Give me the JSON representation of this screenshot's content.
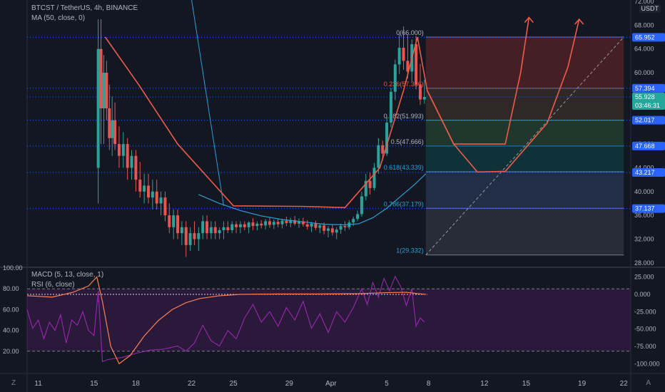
{
  "header": {
    "symbol_line": "BTCST / TetherUS, 4h, BINANCE",
    "ma_line": "MA (50, close, 0)",
    "currency": "USDT"
  },
  "indicators": {
    "macd_line": "MACD (5, 13, close, 1)",
    "rsi_line": "RSI (6, close)"
  },
  "corners": {
    "left": "Z",
    "right": "A"
  },
  "colors": {
    "background": "#131722",
    "up": "#26a69a",
    "down": "#ef5350",
    "drawing": "#f05a47",
    "ma": "#2a9fd6",
    "rsi": "#9c27b0",
    "macd_signal": "#ff7f50",
    "tag_blue": "#2962ff",
    "tag_teal": "#26a69a"
  },
  "price_tags": [
    {
      "label": "65.952",
      "color": "#2962ff",
      "value": 65.952
    },
    {
      "label": "57.394",
      "color": "#2962ff",
      "value": 57.394
    },
    {
      "label": "55.928",
      "color": "#26a69a",
      "value": 55.928,
      "sub": "03:46:31"
    },
    {
      "label": "52.017",
      "color": "#2962ff",
      "value": 52.017
    },
    {
      "label": "47.668",
      "color": "#2962ff",
      "value": 47.668
    },
    {
      "label": "43.217",
      "color": "#2962ff",
      "value": 43.217
    },
    {
      "label": "37.137",
      "color": "#2962ff",
      "value": 37.137
    }
  ],
  "fib_labels": [
    {
      "label": "0(66.000)",
      "value": 66.0
    },
    {
      "label": "0.236(57.386)",
      "value": 57.386
    },
    {
      "label": "0.382(51.993)",
      "value": 51.993
    },
    {
      "label": "0.5(47.666)",
      "value": 47.666
    },
    {
      "label": "0.618(43.339)",
      "value": 43.339
    },
    {
      "label": "0.786(37.179)",
      "value": 37.179
    },
    {
      "label": "1(29.332)",
      "value": 29.332
    }
  ],
  "chart_data": {
    "type": "candlestick",
    "price_axis": {
      "ticks": [
        "72.000",
        "68.000",
        "64.000",
        "60.000",
        "56.000",
        "52.000",
        "48.000",
        "44.000",
        "40.000",
        "36.000",
        "32.000",
        "28.000"
      ],
      "values": [
        72,
        68,
        64,
        60,
        56,
        52,
        48,
        44,
        40,
        36,
        32,
        28
      ],
      "range": [
        27.5,
        72
      ]
    },
    "time_axis": {
      "labels": [
        "11",
        "15",
        "18",
        "22",
        "25",
        "29",
        "Apr",
        "5",
        "8",
        "12",
        "15",
        "19",
        "22"
      ],
      "positions_day": [
        11,
        15,
        18,
        22,
        25,
        29,
        32,
        36,
        39,
        43,
        46,
        50,
        53
      ]
    },
    "lower_left_axis": {
      "ticks": [
        "100.00",
        "80.00",
        "60.00",
        "40.00",
        "20.00"
      ],
      "values": [
        100,
        80,
        60,
        40,
        20
      ],
      "range": [
        0,
        100
      ]
    },
    "lower_right_axis": {
      "ticks": [
        "25.000",
        "0.000",
        "-25.000",
        "-50.000",
        "-75.000",
        "-100.000"
      ],
      "values": [
        25,
        0,
        -25,
        -50,
        -75,
        -100
      ],
      "range": [
        -112,
        38
      ]
    },
    "day_range": [
      10.2,
      53.5
    ],
    "candles": [
      {
        "d": 15.3,
        "o": 44,
        "h": 69,
        "l": 38,
        "c": 64
      },
      {
        "d": 15.5,
        "o": 64,
        "h": 69,
        "l": 48,
        "c": 54
      },
      {
        "d": 15.7,
        "o": 54,
        "h": 63,
        "l": 48,
        "c": 60
      },
      {
        "d": 15.9,
        "o": 60,
        "h": 62,
        "l": 52,
        "c": 54
      },
      {
        "d": 16.1,
        "o": 54,
        "h": 58,
        "l": 47,
        "c": 49
      },
      {
        "d": 16.3,
        "o": 49,
        "h": 56,
        "l": 46,
        "c": 52
      },
      {
        "d": 16.5,
        "o": 52,
        "h": 55,
        "l": 47,
        "c": 48
      },
      {
        "d": 16.8,
        "o": 48,
        "h": 51,
        "l": 44,
        "c": 46
      },
      {
        "d": 17.1,
        "o": 46,
        "h": 50,
        "l": 44,
        "c": 48
      },
      {
        "d": 17.4,
        "o": 48,
        "h": 49,
        "l": 42,
        "c": 44
      },
      {
        "d": 17.7,
        "o": 44,
        "h": 47,
        "l": 42,
        "c": 46
      },
      {
        "d": 18.0,
        "o": 46,
        "h": 47,
        "l": 40,
        "c": 42
      },
      {
        "d": 18.3,
        "o": 42,
        "h": 45,
        "l": 39,
        "c": 40
      },
      {
        "d": 18.6,
        "o": 40,
        "h": 43,
        "l": 38,
        "c": 41
      },
      {
        "d": 18.9,
        "o": 41,
        "h": 43,
        "l": 38,
        "c": 39
      },
      {
        "d": 19.2,
        "o": 39,
        "h": 42,
        "l": 37,
        "c": 40
      },
      {
        "d": 19.5,
        "o": 40,
        "h": 42,
        "l": 37,
        "c": 38
      },
      {
        "d": 19.8,
        "o": 38,
        "h": 40,
        "l": 36,
        "c": 39
      },
      {
        "d": 20.1,
        "o": 39,
        "h": 40,
        "l": 35,
        "c": 36
      },
      {
        "d": 20.4,
        "o": 36,
        "h": 38,
        "l": 33,
        "c": 34
      },
      {
        "d": 20.7,
        "o": 34,
        "h": 37,
        "l": 32,
        "c": 36
      },
      {
        "d": 21.0,
        "o": 36,
        "h": 37,
        "l": 32,
        "c": 33
      },
      {
        "d": 21.3,
        "o": 33,
        "h": 35,
        "l": 31,
        "c": 34
      },
      {
        "d": 21.6,
        "o": 34,
        "h": 35,
        "l": 29,
        "c": 31
      },
      {
        "d": 21.9,
        "o": 31,
        "h": 34,
        "l": 30,
        "c": 33
      },
      {
        "d": 22.2,
        "o": 33,
        "h": 35,
        "l": 31,
        "c": 32
      },
      {
        "d": 22.5,
        "o": 32,
        "h": 34,
        "l": 30,
        "c": 33
      },
      {
        "d": 22.8,
        "o": 33,
        "h": 36,
        "l": 32,
        "c": 35
      },
      {
        "d": 23.1,
        "o": 35,
        "h": 36,
        "l": 32,
        "c": 33
      },
      {
        "d": 23.4,
        "o": 33,
        "h": 35,
        "l": 32,
        "c": 34
      },
      {
        "d": 23.7,
        "o": 34,
        "h": 35,
        "l": 32,
        "c": 33
      },
      {
        "d": 24.0,
        "o": 33,
        "h": 34,
        "l": 32,
        "c": 33.5
      },
      {
        "d": 24.3,
        "o": 33.5,
        "h": 35,
        "l": 32,
        "c": 34
      },
      {
        "d": 24.6,
        "o": 34,
        "h": 35,
        "l": 33,
        "c": 33.5
      },
      {
        "d": 24.9,
        "o": 33.5,
        "h": 35,
        "l": 33,
        "c": 34.5
      },
      {
        "d": 25.2,
        "o": 34.5,
        "h": 35,
        "l": 33,
        "c": 34
      },
      {
        "d": 25.5,
        "o": 34,
        "h": 35,
        "l": 33,
        "c": 34.5
      },
      {
        "d": 25.8,
        "o": 34.5,
        "h": 35,
        "l": 33.5,
        "c": 34
      },
      {
        "d": 26.1,
        "o": 34,
        "h": 35,
        "l": 33,
        "c": 34.8
      },
      {
        "d": 26.4,
        "o": 34.8,
        "h": 35.5,
        "l": 33.5,
        "c": 34.2
      },
      {
        "d": 26.7,
        "o": 34.2,
        "h": 35,
        "l": 33.5,
        "c": 34.6
      },
      {
        "d": 27.0,
        "o": 34.6,
        "h": 35.2,
        "l": 33.8,
        "c": 34.3
      },
      {
        "d": 27.3,
        "o": 34.3,
        "h": 35.4,
        "l": 33.6,
        "c": 35.0
      },
      {
        "d": 27.6,
        "o": 35.0,
        "h": 35.6,
        "l": 33.9,
        "c": 34.4
      },
      {
        "d": 27.9,
        "o": 34.4,
        "h": 35.3,
        "l": 33.7,
        "c": 34.9
      },
      {
        "d": 28.2,
        "o": 34.9,
        "h": 35.5,
        "l": 34.0,
        "c": 34.5
      },
      {
        "d": 28.5,
        "o": 34.5,
        "h": 35.4,
        "l": 33.8,
        "c": 35.1
      },
      {
        "d": 28.8,
        "o": 35.1,
        "h": 35.8,
        "l": 34.2,
        "c": 34.7
      },
      {
        "d": 29.1,
        "o": 34.7,
        "h": 35.6,
        "l": 34.0,
        "c": 35.2
      },
      {
        "d": 29.4,
        "o": 35.2,
        "h": 35.9,
        "l": 34.3,
        "c": 34.6
      },
      {
        "d": 29.7,
        "o": 34.6,
        "h": 35.5,
        "l": 33.9,
        "c": 35.0
      },
      {
        "d": 30.0,
        "o": 35.0,
        "h": 35.6,
        "l": 34.1,
        "c": 34.5
      },
      {
        "d": 30.3,
        "o": 34.5,
        "h": 35.2,
        "l": 33.6,
        "c": 34.1
      },
      {
        "d": 30.6,
        "o": 34.1,
        "h": 34.9,
        "l": 33.2,
        "c": 34.6
      },
      {
        "d": 30.9,
        "o": 34.6,
        "h": 35.1,
        "l": 33.5,
        "c": 33.9
      },
      {
        "d": 31.2,
        "o": 33.9,
        "h": 34.6,
        "l": 33.0,
        "c": 34.3
      },
      {
        "d": 31.5,
        "o": 34.3,
        "h": 34.8,
        "l": 32.8,
        "c": 33.4
      },
      {
        "d": 31.8,
        "o": 33.4,
        "h": 34.2,
        "l": 32.3,
        "c": 33.8
      },
      {
        "d": 32.1,
        "o": 33.8,
        "h": 34.5,
        "l": 32.6,
        "c": 33.1
      },
      {
        "d": 32.4,
        "o": 33.1,
        "h": 34.0,
        "l": 32.0,
        "c": 33.6
      },
      {
        "d": 32.7,
        "o": 33.6,
        "h": 34.6,
        "l": 32.9,
        "c": 34.2
      },
      {
        "d": 33.0,
        "o": 34.2,
        "h": 35.0,
        "l": 33.4,
        "c": 34.0
      },
      {
        "d": 33.3,
        "o": 34.0,
        "h": 35.2,
        "l": 33.6,
        "c": 34.8
      },
      {
        "d": 33.6,
        "o": 34.8,
        "h": 35.8,
        "l": 34.2,
        "c": 35.4
      },
      {
        "d": 33.9,
        "o": 35.4,
        "h": 36.8,
        "l": 35.0,
        "c": 36.2
      },
      {
        "d": 34.2,
        "o": 36.2,
        "h": 40.0,
        "l": 35.8,
        "c": 39.2
      },
      {
        "d": 34.5,
        "o": 39.2,
        "h": 43.0,
        "l": 38.5,
        "c": 41.8
      },
      {
        "d": 34.8,
        "o": 41.8,
        "h": 43.2,
        "l": 39.5,
        "c": 40.6
      },
      {
        "d": 35.1,
        "o": 40.6,
        "h": 44.8,
        "l": 40.2,
        "c": 44.0
      },
      {
        "d": 35.4,
        "o": 44.0,
        "h": 49.0,
        "l": 43.0,
        "c": 47.8
      },
      {
        "d": 35.7,
        "o": 47.8,
        "h": 48.6,
        "l": 45.2,
        "c": 46.4
      },
      {
        "d": 36.0,
        "o": 46.4,
        "h": 52.5,
        "l": 46.0,
        "c": 51.6
      },
      {
        "d": 36.3,
        "o": 51.6,
        "h": 57.5,
        "l": 50.8,
        "c": 56.8
      },
      {
        "d": 36.6,
        "o": 56.8,
        "h": 62.2,
        "l": 55.4,
        "c": 61.4
      },
      {
        "d": 36.9,
        "o": 61.4,
        "h": 66.5,
        "l": 59.8,
        "c": 64.2
      },
      {
        "d": 37.2,
        "o": 64.2,
        "h": 67.8,
        "l": 60.5,
        "c": 62.0
      },
      {
        "d": 37.5,
        "o": 62.0,
        "h": 66.4,
        "l": 59.0,
        "c": 60.2
      },
      {
        "d": 37.8,
        "o": 60.2,
        "h": 65.6,
        "l": 58.5,
        "c": 64.8
      },
      {
        "d": 38.1,
        "o": 64.8,
        "h": 66.2,
        "l": 57.2,
        "c": 58.0
      },
      {
        "d": 38.4,
        "o": 58.0,
        "h": 61.5,
        "l": 54.6,
        "c": 55.5
      },
      {
        "d": 38.7,
        "o": 55.5,
        "h": 58.8,
        "l": 54.8,
        "c": 55.928
      }
    ],
    "ma50": [
      {
        "d": 22.5,
        "v": 39.5
      },
      {
        "d": 24.0,
        "v": 38.0
      },
      {
        "d": 25.5,
        "v": 36.8
      },
      {
        "d": 27.0,
        "v": 35.9
      },
      {
        "d": 28.5,
        "v": 35.3
      },
      {
        "d": 30.0,
        "v": 34.9
      },
      {
        "d": 31.5,
        "v": 34.5
      },
      {
        "d": 33.0,
        "v": 34.4
      },
      {
        "d": 34.0,
        "v": 34.6
      },
      {
        "d": 35.0,
        "v": 35.6
      },
      {
        "d": 36.0,
        "v": 37.2
      },
      {
        "d": 37.0,
        "v": 39.2
      },
      {
        "d": 38.0,
        "v": 41.2
      },
      {
        "d": 38.8,
        "v": 43.0
      }
    ],
    "rsi": [
      {
        "d": 10.2,
        "v": 60
      },
      {
        "d": 10.6,
        "v": 42
      },
      {
        "d": 11.0,
        "v": 50
      },
      {
        "d": 11.4,
        "v": 32
      },
      {
        "d": 11.8,
        "v": 48
      },
      {
        "d": 12.2,
        "v": 40
      },
      {
        "d": 12.6,
        "v": 55
      },
      {
        "d": 13.0,
        "v": 28
      },
      {
        "d": 13.4,
        "v": 50
      },
      {
        "d": 13.8,
        "v": 45
      },
      {
        "d": 14.2,
        "v": 58
      },
      {
        "d": 14.6,
        "v": 40
      },
      {
        "d": 15.0,
        "v": 35
      },
      {
        "d": 15.3,
        "v": 78
      },
      {
        "d": 15.6,
        "v": 10
      },
      {
        "d": 16.0,
        "v": 12
      },
      {
        "d": 17.0,
        "v": 14
      },
      {
        "d": 18.0,
        "v": 18
      },
      {
        "d": 19.0,
        "v": 21
      },
      {
        "d": 20.0,
        "v": 22
      },
      {
        "d": 21.0,
        "v": 25
      },
      {
        "d": 21.6,
        "v": 20
      },
      {
        "d": 22.2,
        "v": 28
      },
      {
        "d": 22.8,
        "v": 45
      },
      {
        "d": 23.4,
        "v": 30
      },
      {
        "d": 24.0,
        "v": 25
      },
      {
        "d": 24.6,
        "v": 40
      },
      {
        "d": 25.2,
        "v": 32
      },
      {
        "d": 25.8,
        "v": 52
      },
      {
        "d": 26.4,
        "v": 65
      },
      {
        "d": 27.0,
        "v": 48
      },
      {
        "d": 27.6,
        "v": 58
      },
      {
        "d": 28.2,
        "v": 44
      },
      {
        "d": 28.8,
        "v": 62
      },
      {
        "d": 29.4,
        "v": 50
      },
      {
        "d": 30.0,
        "v": 68
      },
      {
        "d": 30.6,
        "v": 42
      },
      {
        "d": 31.2,
        "v": 56
      },
      {
        "d": 31.8,
        "v": 38
      },
      {
        "d": 32.4,
        "v": 58
      },
      {
        "d": 33.0,
        "v": 48
      },
      {
        "d": 33.6,
        "v": 62
      },
      {
        "d": 34.2,
        "v": 80
      },
      {
        "d": 34.6,
        "v": 65
      },
      {
        "d": 35.0,
        "v": 86
      },
      {
        "d": 35.4,
        "v": 72
      },
      {
        "d": 35.8,
        "v": 90
      },
      {
        "d": 36.2,
        "v": 78
      },
      {
        "d": 36.6,
        "v": 92
      },
      {
        "d": 37.0,
        "v": 82
      },
      {
        "d": 37.4,
        "v": 64
      },
      {
        "d": 37.8,
        "v": 80
      },
      {
        "d": 38.1,
        "v": 44
      },
      {
        "d": 38.4,
        "v": 52
      },
      {
        "d": 38.7,
        "v": 48
      }
    ],
    "macd": [
      {
        "d": 10.2,
        "v": -2
      },
      {
        "d": 12.0,
        "v": -4
      },
      {
        "d": 13.5,
        "v": 3
      },
      {
        "d": 14.6,
        "v": 12
      },
      {
        "d": 15.2,
        "v": 25
      },
      {
        "d": 15.6,
        "v": -10
      },
      {
        "d": 16.2,
        "v": -75
      },
      {
        "d": 16.8,
        "v": -100
      },
      {
        "d": 17.6,
        "v": -88
      },
      {
        "d": 18.6,
        "v": -60
      },
      {
        "d": 19.6,
        "v": -38
      },
      {
        "d": 20.6,
        "v": -22
      },
      {
        "d": 21.6,
        "v": -12
      },
      {
        "d": 22.6,
        "v": -6
      },
      {
        "d": 24.0,
        "v": -2
      },
      {
        "d": 25.5,
        "v": 0
      },
      {
        "d": 28.0,
        "v": 0.5
      },
      {
        "d": 31.0,
        "v": 0.5
      },
      {
        "d": 34.0,
        "v": 1
      },
      {
        "d": 36.0,
        "v": 2.5
      },
      {
        "d": 37.4,
        "v": 3
      },
      {
        "d": 38.2,
        "v": 1
      },
      {
        "d": 38.8,
        "v": 0
      }
    ],
    "rsi_bands": {
      "upper": 80,
      "lower": 20
    },
    "projection_path_1": [
      {
        "d": 15.8,
        "v": 66
      },
      {
        "d": 18.2,
        "v": 58
      },
      {
        "d": 21.0,
        "v": 48
      },
      {
        "d": 25.0,
        "v": 37.6
      },
      {
        "d": 30.0,
        "v": 37.5
      },
      {
        "d": 33.0,
        "v": 37.3
      },
      {
        "d": 35.5,
        "v": 44
      },
      {
        "d": 37.2,
        "v": 57
      },
      {
        "d": 38.2,
        "v": 66
      },
      {
        "d": 38.9,
        "v": 57
      },
      {
        "d": 40.8,
        "v": 48
      },
      {
        "d": 42.5,
        "v": 43.3
      },
      {
        "d": 44.5,
        "v": 43.4
      },
      {
        "d": 47.5,
        "v": 51.5
      },
      {
        "d": 49.0,
        "v": 61
      },
      {
        "d": 49.8,
        "v": 69
      }
    ],
    "projection_path_2": [
      {
        "d": 38.9,
        "v": 57
      },
      {
        "d": 40.8,
        "v": 48
      },
      {
        "d": 44.5,
        "v": 48
      },
      {
        "d": 45.6,
        "v": 60
      },
      {
        "d": 46.2,
        "v": 69.3
      }
    ],
    "fib_box": {
      "start_d": 38.8,
      "end_d": 53.0
    },
    "fib_levels": [
      66.0,
      57.386,
      51.993,
      47.666,
      43.339,
      37.179,
      29.332
    ],
    "fib_fills": [
      {
        "top": 66.0,
        "bottom": 57.386,
        "color": "#f44336"
      },
      {
        "top": 57.386,
        "bottom": 51.993,
        "color": "#9b6a35"
      },
      {
        "top": 51.993,
        "bottom": 47.666,
        "color": "#4caf50"
      },
      {
        "top": 47.666,
        "bottom": 43.339,
        "color": "#009688"
      },
      {
        "top": 43.339,
        "bottom": 37.179,
        "color": "#5b86c2"
      },
      {
        "top": 37.179,
        "bottom": 29.332,
        "color": "#787b86"
      }
    ],
    "dotted_levels": [
      65.952,
      57.394,
      55.928,
      52.017,
      47.668,
      43.217,
      37.137
    ]
  }
}
